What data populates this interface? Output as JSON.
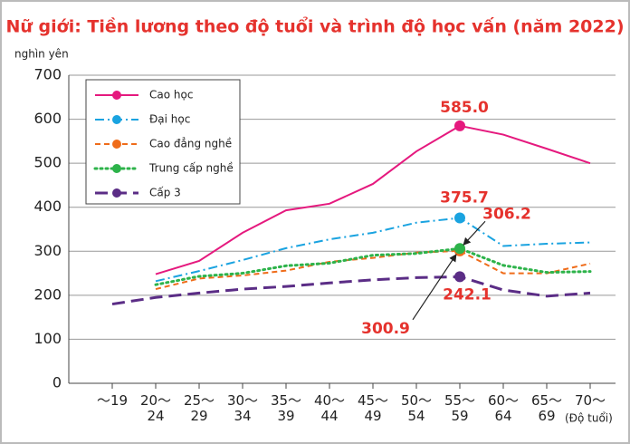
{
  "chart_data": {
    "type": "line",
    "title": "Nữ giới: Tiền lương theo độ tuổi và trình độ học vấn (năm 2022)",
    "y_label": "nghìn yên",
    "x_label": "(Độ tuổi)",
    "categories": [
      "～19",
      "20～\n24",
      "25～\n29",
      "30～\n34",
      "35～\n39",
      "40～\n44",
      "45～\n49",
      "50～\n54",
      "55～\n59",
      "60～\n64",
      "65～\n69",
      "70～"
    ],
    "ylim": [
      0,
      700
    ],
    "yticks": [
      0,
      100,
      200,
      300,
      400,
      500,
      600,
      700
    ],
    "grid": true,
    "legend": "upper left",
    "series": [
      {
        "name": "Cao học",
        "color": "#e5197e",
        "dash": "solid",
        "values": [
          null,
          248,
          278,
          342,
          393,
          408,
          453,
          527,
          585.0,
          565,
          533,
          500
        ],
        "value_labels": [
          null,
          null,
          null,
          null,
          null,
          null,
          null,
          null,
          "585.0",
          null,
          null,
          null
        ]
      },
      {
        "name": "Đại học",
        "color": "#1aa3e0",
        "dash": "dashdot",
        "values": [
          null,
          232,
          255,
          280,
          307,
          327,
          342,
          365,
          375.7,
          312,
          317,
          320
        ],
        "value_labels": [
          null,
          null,
          null,
          null,
          null,
          null,
          null,
          null,
          "375.7",
          null,
          null,
          null
        ]
      },
      {
        "name": "Cao đẳng nghề",
        "color": "#ef6c1a",
        "dash": "dashed",
        "values": [
          null,
          214,
          238,
          245,
          256,
          276,
          285,
          297,
          300.9,
          250,
          250,
          272
        ],
        "value_labels": [
          null,
          null,
          null,
          null,
          null,
          null,
          null,
          null,
          "300.9",
          null,
          null,
          null
        ]
      },
      {
        "name": "Trung cấp nghề",
        "color": "#2db34a",
        "dash": "dotted",
        "values": [
          null,
          224,
          243,
          250,
          267,
          273,
          291,
          295,
          306.2,
          268,
          252,
          254
        ],
        "value_labels": [
          null,
          null,
          null,
          null,
          null,
          null,
          null,
          null,
          "306.2",
          null,
          null,
          null
        ]
      },
      {
        "name": "Cấp 3",
        "color": "#5b2d86",
        "dash": "longdash",
        "values": [
          180,
          195,
          205,
          214,
          220,
          228,
          235,
          240,
          242.1,
          212,
          198,
          205
        ],
        "value_labels": [
          null,
          null,
          null,
          null,
          null,
          null,
          null,
          null,
          "242.1",
          null,
          null,
          null
        ]
      }
    ]
  }
}
